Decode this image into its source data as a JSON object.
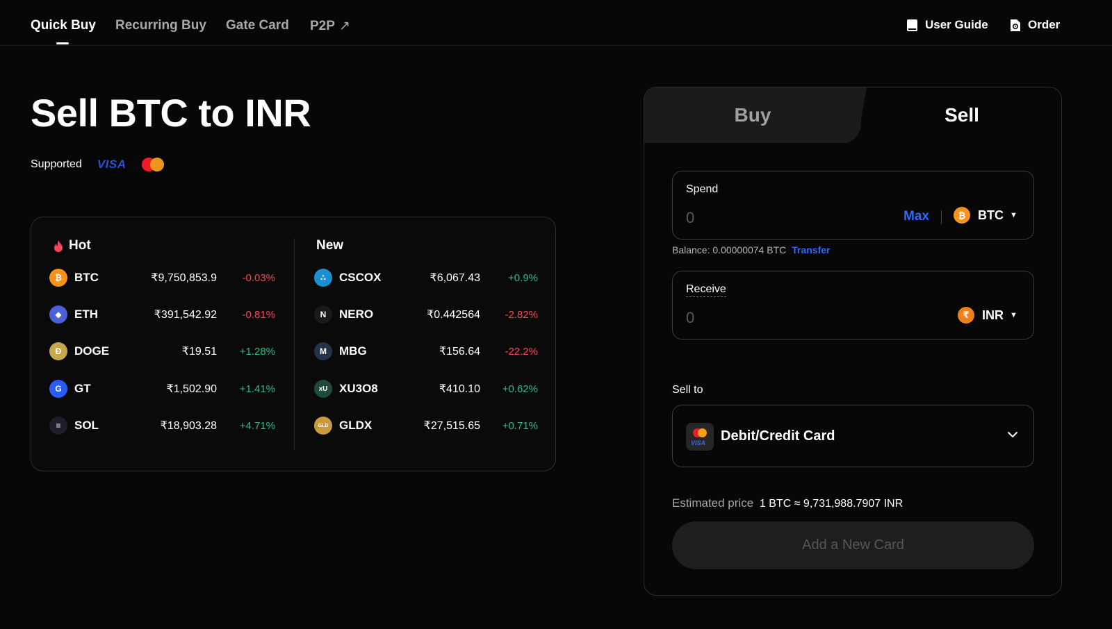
{
  "nav": {
    "tabs": [
      {
        "label": "Quick Buy"
      },
      {
        "label": "Recurring Buy"
      },
      {
        "label": "Gate Card"
      },
      {
        "label": "P2P"
      }
    ],
    "p2p_arrow": "↗",
    "user_guide": "User Guide",
    "order": "Order"
  },
  "hero": {
    "title": "Sell BTC to INR",
    "supported": "Supported",
    "visa": "VISA"
  },
  "market": {
    "hot_label": "Hot",
    "new_label": "New",
    "hot": [
      {
        "symbol": "BTC",
        "price": "₹9,750,853.9",
        "change": "-0.03%",
        "dir": "neg",
        "color": "#f7931a",
        "glyph": "₿"
      },
      {
        "symbol": "ETH",
        "price": "₹391,542.92",
        "change": "-0.81%",
        "dir": "neg",
        "color": "#4b5fd6",
        "glyph": "◆"
      },
      {
        "symbol": "DOGE",
        "price": "₹19.51",
        "change": "+1.28%",
        "dir": "pos",
        "color": "#c8a94a",
        "glyph": "Ð"
      },
      {
        "symbol": "GT",
        "price": "₹1,502.90",
        "change": "+1.41%",
        "dir": "pos",
        "color": "#2a5bff",
        "glyph": "G"
      },
      {
        "symbol": "SOL",
        "price": "₹18,903.28",
        "change": "+4.71%",
        "dir": "pos",
        "color": "#1e1e2a",
        "glyph": "≡"
      }
    ],
    "new": [
      {
        "symbol": "CSCOX",
        "price": "₹6,067.43",
        "change": "+0.9%",
        "dir": "pos",
        "color": "#1a8fd1",
        "glyph": "∴"
      },
      {
        "symbol": "NERO",
        "price": "₹0.442564",
        "change": "-2.82%",
        "dir": "neg",
        "color": "#1a1a1a",
        "glyph": "N"
      },
      {
        "symbol": "MBG",
        "price": "₹156.64",
        "change": "-22.2%",
        "dir": "neg",
        "color": "#223347",
        "glyph": "M"
      },
      {
        "symbol": "XU3O8",
        "price": "₹410.10",
        "change": "+0.62%",
        "dir": "pos",
        "color": "#1f4a3a",
        "glyph": "xU"
      },
      {
        "symbol": "GLDX",
        "price": "₹27,515.65",
        "change": "+0.71%",
        "dir": "pos",
        "color": "#c99a3a",
        "glyph": "GLD"
      }
    ]
  },
  "trade": {
    "buy_tab": "Buy",
    "sell_tab": "Sell",
    "spend_label": "Spend",
    "spend_placeholder": "0",
    "max": "Max",
    "spend_currency": "BTC",
    "spend_glyph": "₿",
    "balance": "Balance: 0.00000074 BTC",
    "transfer": "Transfer",
    "receive_label": "Receive",
    "receive_placeholder": "0",
    "receive_currency": "INR",
    "receive_glyph": "₹",
    "sell_to": "Sell to",
    "method": "Debit/Credit Card",
    "method_visa": "VISA",
    "estimate_label": "Estimated price",
    "estimate_value": "1 BTC ≈ 9,731,988.7907 INR",
    "cta": "Add a New Card"
  }
}
